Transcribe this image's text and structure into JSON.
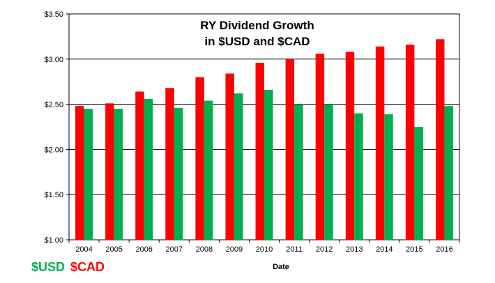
{
  "chart_data": {
    "type": "bar",
    "title_lines": [
      "RY Dividend Growth",
      "in $USD and $CAD"
    ],
    "xlabel": "Date",
    "ylabel": "",
    "categories": [
      "2004",
      "2005",
      "2006",
      "2007",
      "2008",
      "2009",
      "2010",
      "2011",
      "2012",
      "2013",
      "2014",
      "2015",
      "2016"
    ],
    "series": [
      {
        "name": "$CAD",
        "color": "#ff0000",
        "values": [
          2.48,
          2.51,
          2.64,
          2.68,
          2.8,
          2.84,
          2.96,
          3.0,
          3.06,
          3.08,
          3.14,
          3.16,
          3.22
        ]
      },
      {
        "name": "$USD",
        "color": "#00b050",
        "values": [
          2.45,
          2.45,
          2.56,
          2.46,
          2.54,
          2.62,
          2.66,
          2.5,
          2.5,
          2.4,
          2.39,
          2.25,
          2.48
        ]
      }
    ],
    "ylim": [
      1.0,
      3.5
    ],
    "yticks": [
      "$1.00",
      "$1.50",
      "$2.00",
      "$2.50",
      "$3.00",
      "$3.50"
    ],
    "grid": true,
    "legend": [
      {
        "label": "$USD",
        "color": "#00b050"
      },
      {
        "label": "$CAD",
        "color": "#ff0000"
      }
    ],
    "legend_position": "bottom-left"
  }
}
